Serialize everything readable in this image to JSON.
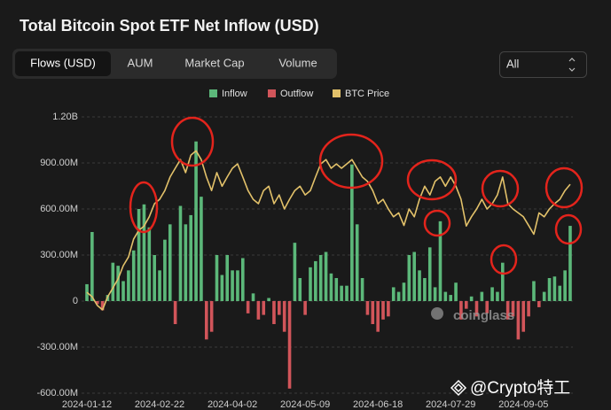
{
  "page": {
    "title": "Total Bitcoin Spot ETF Net Inflow (USD)",
    "tabs": [
      "Flows (USD)",
      "AUM",
      "Market Cap",
      "Volume"
    ],
    "select": "All",
    "watermark": "coinglass",
    "credit": "@Crypto特工"
  },
  "chart_data": {
    "type": "bar",
    "categories": [
      "2024-01-12",
      null,
      null,
      null,
      null,
      null,
      null,
      null,
      null,
      null,
      null,
      null,
      null,
      null,
      "2024-02-22",
      null,
      null,
      null,
      null,
      null,
      null,
      null,
      null,
      null,
      null,
      null,
      null,
      null,
      "2024-04-02",
      null,
      null,
      null,
      null,
      null,
      null,
      null,
      null,
      null,
      null,
      null,
      null,
      null,
      "2024-05-09",
      null,
      null,
      null,
      null,
      null,
      null,
      null,
      null,
      null,
      null,
      null,
      null,
      null,
      "2024-06-18",
      null,
      null,
      null,
      null,
      null,
      null,
      null,
      null,
      null,
      null,
      null,
      null,
      null,
      "2024-07-29",
      null,
      null,
      null,
      null,
      null,
      null,
      null,
      null,
      null,
      null,
      null,
      null,
      null,
      "2024-09-05",
      null,
      null,
      null,
      null,
      null,
      null,
      null,
      null,
      null
    ],
    "series": [
      {
        "name": "Inflow",
        "color": "#5cb87a",
        "values": [
          110000000.0,
          450000000.0,
          null,
          null,
          40000000.0,
          250000000.0,
          230000000.0,
          130000000.0,
          200000000.0,
          330000000.0,
          600000000.0,
          630000000.0,
          480000000.0,
          300000000.0,
          200000000.0,
          400000000.0,
          500000000.0,
          null,
          620000000.0,
          500000000.0,
          560000000.0,
          1040000000.0,
          680000000.0,
          null,
          null,
          300000000.0,
          170000000.0,
          300000000.0,
          200000000.0,
          200000000.0,
          280000000.0,
          null,
          50000000.0,
          null,
          null,
          20000000.0,
          null,
          null,
          null,
          null,
          380000000.0,
          150000000.0,
          null,
          220000000.0,
          260000000.0,
          300000000.0,
          320000000.0,
          180000000.0,
          150000000.0,
          100000000.0,
          100000000.0,
          890000000.0,
          500000000.0,
          150000000.0,
          null,
          null,
          null,
          null,
          null,
          90000000.0,
          60000000.0,
          120000000.0,
          300000000.0,
          320000000.0,
          200000000.0,
          150000000.0,
          350000000.0,
          90000000.0,
          520000000.0,
          60000000.0,
          40000000.0,
          120000000.0,
          null,
          null,
          30000000.0,
          null,
          60000000.0,
          null,
          90000000.0,
          60000000.0,
          250000000.0,
          null,
          null,
          null,
          null,
          null,
          130000000.0,
          null,
          60000000.0,
          150000000.0,
          160000000.0,
          100000000.0,
          200000000.0,
          490000000.0
        ]
      },
      {
        "name": "Outflow",
        "color": "#d1555a",
        "values": [
          null,
          null,
          -20000000.0,
          -60000000.0,
          null,
          null,
          null,
          null,
          null,
          null,
          null,
          null,
          null,
          null,
          null,
          null,
          null,
          -150000000.0,
          null,
          null,
          null,
          null,
          null,
          -250000000.0,
          -200000000.0,
          null,
          null,
          null,
          null,
          null,
          null,
          -80000000.0,
          null,
          -120000000.0,
          -90000000.0,
          null,
          -150000000.0,
          -90000000.0,
          -200000000.0,
          -570000000.0,
          null,
          null,
          -90000000.0,
          null,
          null,
          null,
          null,
          null,
          null,
          null,
          null,
          null,
          null,
          null,
          -90000000.0,
          -150000000.0,
          -200000000.0,
          -120000000.0,
          -100000000.0,
          null,
          null,
          null,
          null,
          null,
          null,
          null,
          null,
          null,
          null,
          null,
          null,
          null,
          -120000000.0,
          -50000000.0,
          null,
          -100000000.0,
          null,
          -80000000.0,
          null,
          null,
          null,
          -120000000.0,
          -100000000.0,
          -250000000.0,
          -200000000.0,
          -100000000.0,
          null,
          -40000000.0,
          null,
          null,
          null,
          null,
          null,
          null
        ]
      },
      {
        "name": "BTC Price",
        "color": "#e2c16a",
        "type": "line",
        "axis": "y2",
        "values": [
          43800,
          42900,
          41100,
          40200,
          42900,
          44700,
          46600,
          49300,
          51100,
          54800,
          56600,
          57500,
          59400,
          62100,
          63000,
          64800,
          67600,
          69400,
          71200,
          68500,
          72100,
          73000,
          71200,
          67600,
          64800,
          68500,
          65700,
          67600,
          69400,
          70300,
          67600,
          64800,
          63000,
          62100,
          64800,
          65700,
          62100,
          63900,
          61000,
          63000,
          64800,
          65700,
          63900,
          64800,
          67600,
          70300,
          71200,
          69400,
          70300,
          69400,
          70300,
          71200,
          69400,
          67600,
          66700,
          64800,
          62100,
          63000,
          61000,
          59400,
          60200,
          57600,
          61000,
          59400,
          63000,
          65700,
          63900,
          66700,
          67600,
          65700,
          67600,
          65700,
          63000,
          57500,
          59400,
          61000,
          63000,
          61000,
          62100,
          63900,
          67600,
          62100,
          61000,
          60200,
          59400,
          57600,
          55800,
          60200,
          59400,
          61000,
          62100,
          63000,
          64800,
          66100
        ]
      }
    ],
    "ylim": [
      -600000000.0,
      1200000000.0
    ],
    "yticks": [
      {
        "value": -600000000.0,
        "label": "-600.00M"
      },
      {
        "value": -300000000.0,
        "label": "-300.00M"
      },
      0,
      {
        "value": 300000000.0,
        "label": "300.00M"
      },
      {
        "value": 600000000.0,
        "label": "600.00M"
      },
      {
        "value": 900000000.0,
        "label": "900.00M"
      },
      {
        "value": 1200000000.0,
        "label": "1.20B"
      }
    ],
    "y2lim": [
      23000,
      80000
    ],
    "grid": true
  }
}
